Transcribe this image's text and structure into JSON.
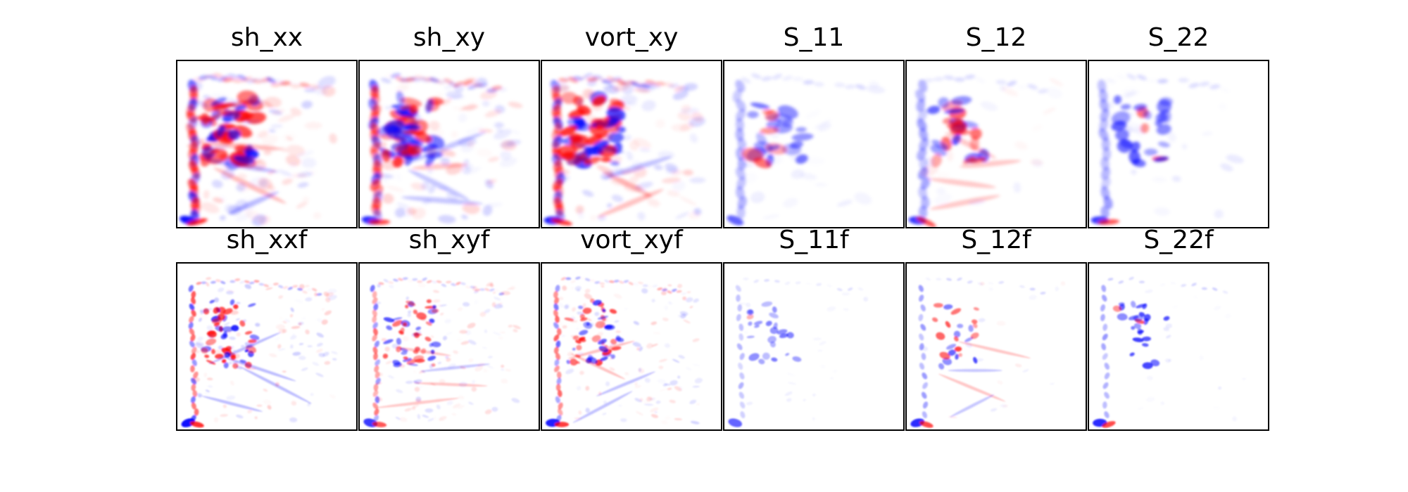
{
  "chart_data": {
    "type": "heatmap",
    "colormap": "bwr",
    "colors": {
      "positive": "#ff0000",
      "negative": "#0000ff",
      "zero": "#ffffff",
      "frame": "#000000"
    },
    "axes_visible": false,
    "grid": false,
    "panels": [
      {
        "row": 0,
        "col": 0,
        "title": "sh_xx",
        "kind": "raw",
        "intensity": 0.85,
        "style": "dense"
      },
      {
        "row": 0,
        "col": 1,
        "title": "sh_xy",
        "kind": "raw",
        "intensity": 0.75,
        "style": "dense"
      },
      {
        "row": 0,
        "col": 2,
        "title": "vort_xy",
        "kind": "raw",
        "intensity": 0.8,
        "style": "dense"
      },
      {
        "row": 0,
        "col": 3,
        "title": "S_11",
        "kind": "raw",
        "intensity": 0.55,
        "style": "sparse-blue"
      },
      {
        "row": 0,
        "col": 4,
        "title": "S_12",
        "kind": "raw",
        "intensity": 0.7,
        "style": "sparse-mixed"
      },
      {
        "row": 0,
        "col": 5,
        "title": "S_22",
        "kind": "raw",
        "intensity": 0.7,
        "style": "sparse-blue"
      },
      {
        "row": 1,
        "col": 0,
        "title": "sh_xxf",
        "kind": "filtered",
        "intensity": 0.85,
        "style": "dense"
      },
      {
        "row": 1,
        "col": 1,
        "title": "sh_xyf",
        "kind": "filtered",
        "intensity": 0.7,
        "style": "dense"
      },
      {
        "row": 1,
        "col": 2,
        "title": "vort_xyf",
        "kind": "filtered",
        "intensity": 0.8,
        "style": "dense"
      },
      {
        "row": 1,
        "col": 3,
        "title": "S_11f",
        "kind": "filtered",
        "intensity": 0.55,
        "style": "sparse-blue"
      },
      {
        "row": 1,
        "col": 4,
        "title": "S_12f",
        "kind": "filtered",
        "intensity": 0.75,
        "style": "sparse-mixed"
      },
      {
        "row": 1,
        "col": 5,
        "title": "S_22f",
        "kind": "filtered",
        "intensity": 0.75,
        "style": "sparse-blue"
      }
    ]
  }
}
